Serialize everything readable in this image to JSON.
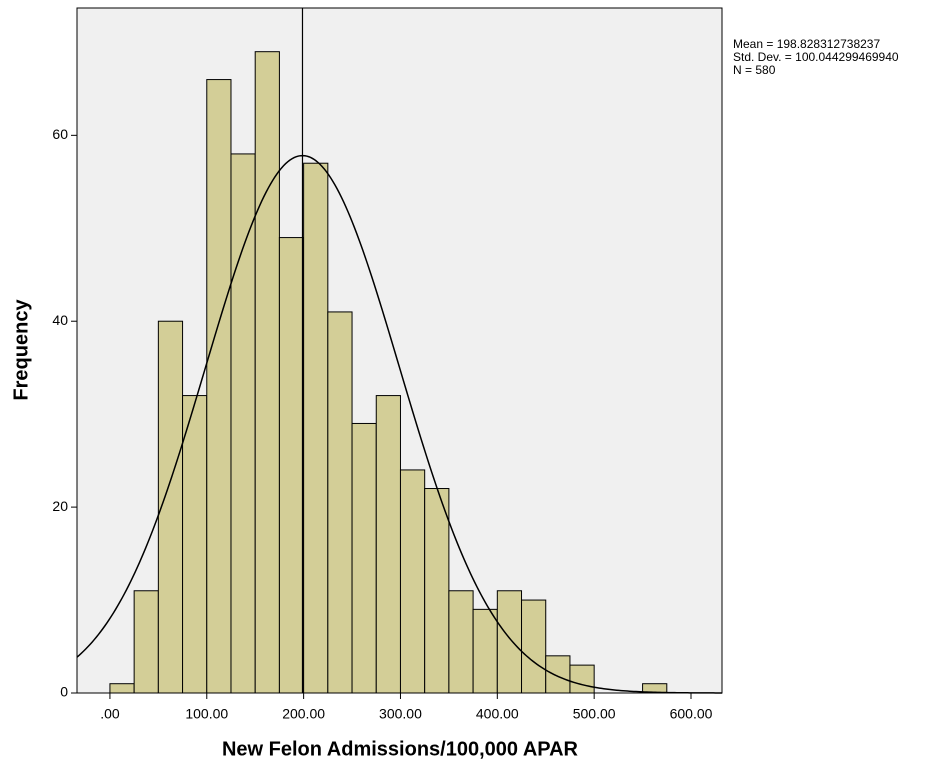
{
  "chart_data": {
    "type": "histogram",
    "x_label": "New Felon Admissions/100,000 APAR",
    "y_label": "Frequency",
    "bins": [
      0,
      25,
      50,
      75,
      100,
      125,
      150,
      175,
      200,
      225,
      250,
      275,
      300,
      325,
      350,
      375,
      400,
      425,
      450,
      475,
      500,
      525,
      550,
      575
    ],
    "values": [
      1,
      11,
      40,
      32,
      66,
      58,
      69,
      49,
      57,
      41,
      29,
      32,
      24,
      22,
      11,
      9,
      11,
      10,
      4,
      3,
      0,
      0,
      1
    ],
    "color": "#d3ce97",
    "edge_color": "#000000",
    "background": "#f0f0f0",
    "xlim": [
      -34,
      632
    ],
    "ylim": [
      0,
      73.7
    ],
    "xticks": [
      {
        "value": 0,
        "label": ".00"
      },
      {
        "value": 100,
        "label": "100.00"
      },
      {
        "value": 200,
        "label": "200.00"
      },
      {
        "value": 300,
        "label": "300.00"
      },
      {
        "value": 400,
        "label": "400.00"
      },
      {
        "value": 500,
        "label": "500.00"
      },
      {
        "value": 600,
        "label": "600.00"
      }
    ],
    "yticks": [
      0,
      20,
      40,
      60
    ],
    "annotations": [
      {
        "value": 198.828312738237,
        "label": "Mean = 198.828312738237"
      },
      {
        "value": 100.04429946994,
        "label": "Std. Dev. = 100.044299469940"
      },
      {
        "value": 580,
        "label": "N = 580"
      }
    ]
  }
}
